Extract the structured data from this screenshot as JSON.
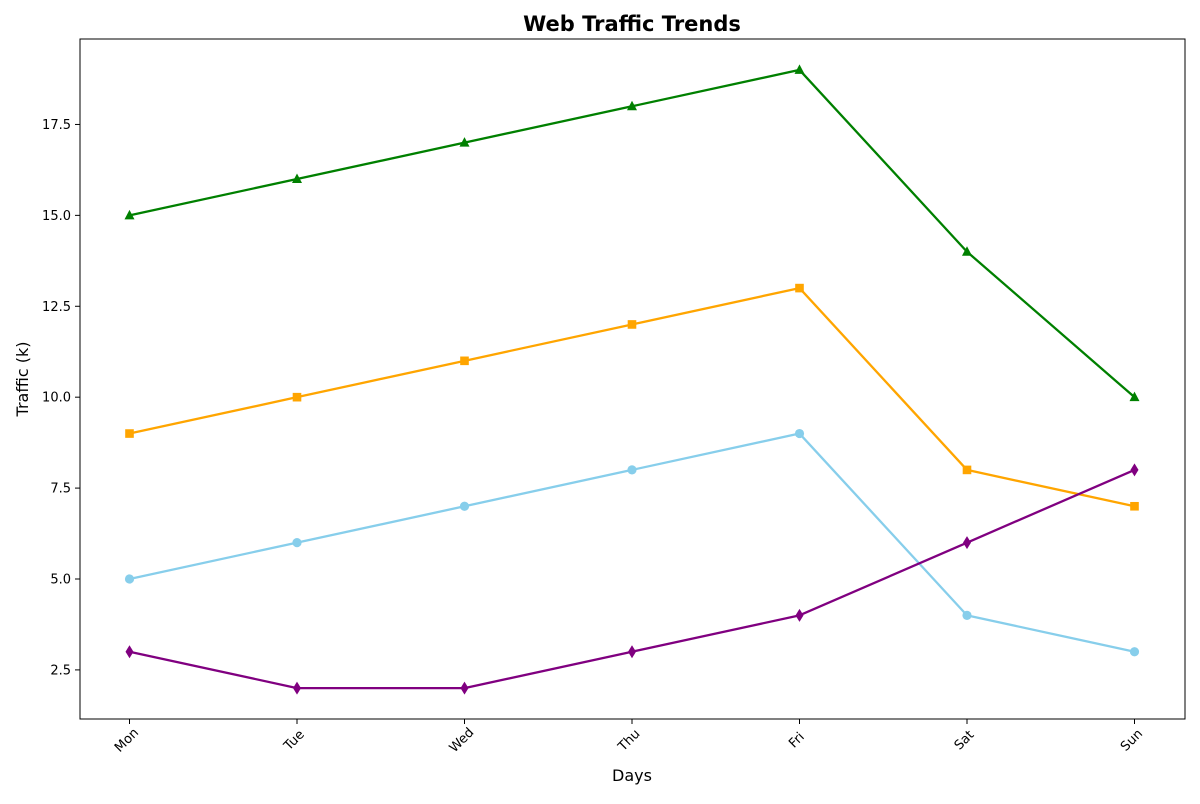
{
  "chart_data": {
    "type": "line",
    "title": "Web Traffic Trends",
    "xlabel": "Days",
    "ylabel": "Traffic (k)",
    "categories": [
      "Mon",
      "Tue",
      "Wed",
      "Thu",
      "Fri",
      "Sat",
      "Sun"
    ],
    "ylim": [
      1.15,
      19.85
    ],
    "yticks": [
      2.5,
      5.0,
      7.5,
      10.0,
      12.5,
      15.0,
      17.5
    ],
    "ytick_labels": [
      "2.5",
      "5.0",
      "7.5",
      "10.0",
      "12.5",
      "15.0",
      "17.5"
    ],
    "grid": false,
    "legend": "none",
    "series": [
      {
        "color": "#008000",
        "marker": "triangle",
        "values": [
          15,
          16,
          17,
          18,
          19,
          14,
          10
        ]
      },
      {
        "color": "#FFA500",
        "marker": "square",
        "values": [
          9,
          10,
          11,
          12,
          13,
          8,
          7
        ]
      },
      {
        "color": "#87CEEB",
        "marker": "circle",
        "values": [
          5,
          6,
          7,
          8,
          9,
          4,
          3
        ]
      },
      {
        "color": "#800080",
        "marker": "diamond",
        "values": [
          3,
          2,
          2,
          3,
          4,
          6,
          8
        ]
      }
    ]
  }
}
